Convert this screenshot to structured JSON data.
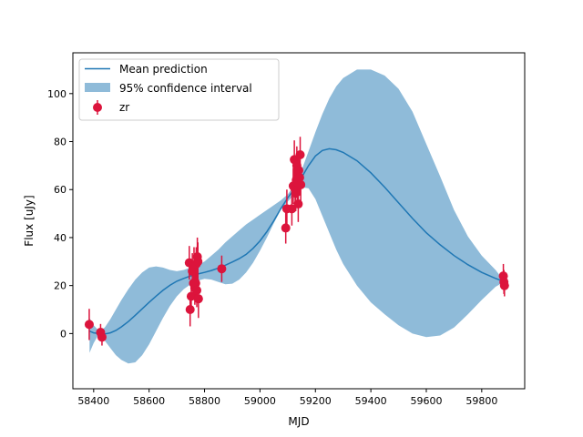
{
  "chart_data": {
    "type": "line",
    "title": "",
    "xlabel": "MJD",
    "ylabel": "Flux [uJy]",
    "xlim": [
      58325,
      59955
    ],
    "ylim": [
      -23,
      117
    ],
    "xticks": [
      58400,
      58600,
      58800,
      59000,
      59200,
      59400,
      59600,
      59800
    ],
    "yticks": [
      0,
      20,
      40,
      60,
      80,
      100
    ],
    "grid": false,
    "legend_position": "upper-left",
    "legend": {
      "mean_label": "Mean prediction",
      "band_label": "95% confidence interval",
      "points_label": "zr"
    },
    "colors": {
      "mean": "#1f77b4",
      "band": "#8fbbd9",
      "points": "#dc143c"
    },
    "mean": {
      "x": [
        58385,
        58400,
        58420,
        58440,
        58460,
        58480,
        58500,
        58525,
        58550,
        58575,
        58600,
        58625,
        58650,
        58675,
        58700,
        58725,
        58750,
        58775,
        58800,
        58825,
        58850,
        58875,
        58900,
        58925,
        58950,
        58975,
        59000,
        59025,
        59050,
        59075,
        59100,
        59125,
        59150,
        59175,
        59200,
        59225,
        59250,
        59275,
        59300,
        59350,
        59400,
        59450,
        59500,
        59550,
        59600,
        59650,
        59700,
        59750,
        59800,
        59850,
        59880
      ],
      "y": [
        1,
        0.3,
        0,
        -0.2,
        0.3,
        1.3,
        2.8,
        5,
        7.6,
        10.3,
        13,
        15.6,
        18,
        20.1,
        21.8,
        23,
        24,
        24.8,
        25.5,
        26.3,
        27.3,
        28.5,
        29.8,
        31.2,
        33,
        35.5,
        38.6,
        42.5,
        47,
        52,
        56.5,
        60.5,
        65,
        70,
        74,
        76.3,
        77,
        76.6,
        75.5,
        72,
        67,
        61,
        54.5,
        48,
        42,
        37,
        32.5,
        28.7,
        25.5,
        23,
        21.7
      ]
    },
    "band": {
      "x": [
        58385,
        58400,
        58420,
        58440,
        58460,
        58480,
        58500,
        58525,
        58550,
        58575,
        58600,
        58625,
        58650,
        58675,
        58700,
        58725,
        58750,
        58775,
        58800,
        58825,
        58850,
        58875,
        58900,
        58925,
        58950,
        58975,
        59000,
        59025,
        59050,
        59075,
        59100,
        59125,
        59150,
        59175,
        59200,
        59225,
        59250,
        59275,
        59300,
        59350,
        59400,
        59450,
        59500,
        59550,
        59600,
        59650,
        59700,
        59750,
        59800,
        59850,
        59880
      ],
      "lower": [
        -8,
        -4,
        0,
        -3,
        -6,
        -9,
        -11,
        -12.5,
        -12,
        -9,
        -4.5,
        1,
        6.5,
        11.5,
        15.5,
        18.5,
        20.5,
        22,
        22.8,
        22.5,
        21.5,
        20.5,
        20.8,
        22.5,
        25.5,
        29.5,
        34.5,
        40,
        46,
        51.5,
        55,
        58,
        61,
        60.5,
        56,
        49,
        42,
        35,
        29,
        20,
        13,
        8,
        3.5,
        0,
        -1.5,
        -0.8,
        2.5,
        8,
        14,
        19.5,
        21.5
      ],
      "upper": [
        6.5,
        3.5,
        1,
        2.5,
        6,
        10,
        14,
        18.5,
        22.5,
        25.5,
        27.5,
        28,
        27.5,
        26.5,
        26,
        26.5,
        27.5,
        28.5,
        30,
        32.5,
        35,
        38,
        40.5,
        43,
        45.5,
        47.5,
        49.5,
        51.5,
        53.5,
        55.5,
        58,
        62,
        68,
        76,
        84,
        91.5,
        98,
        103,
        106.5,
        110,
        110,
        107.5,
        102,
        92.5,
        79,
        65.5,
        51.5,
        40.5,
        32.5,
        26.5,
        22
      ]
    },
    "points": {
      "x": [
        58384,
        58425,
        58430,
        58745,
        58748,
        58752,
        58756,
        58760,
        58762,
        58765,
        58768,
        58770,
        58772,
        58774,
        58776,
        58778,
        58862,
        59093,
        59097,
        59115,
        59120,
        59124,
        59127,
        59129,
        59131,
        59133,
        59136,
        59138,
        59140,
        59143,
        59145,
        59147,
        59878,
        59880,
        59882
      ],
      "y": [
        3.8,
        0.5,
        -1.5,
        29.5,
        10,
        15.5,
        26,
        21,
        28,
        19,
        21,
        29,
        18,
        32,
        30,
        14.5,
        27,
        44,
        52,
        52,
        61.5,
        72.5,
        60,
        58.5,
        64,
        70,
        63,
        54,
        68,
        65,
        74.5,
        62,
        24,
        21.5,
        20
      ],
      "yerr": [
        6.5,
        3.5,
        3.5,
        7,
        7,
        6.5,
        7.5,
        7,
        8,
        7,
        8,
        7,
        7,
        8,
        8,
        8,
        5.5,
        6.5,
        8,
        7,
        7.5,
        8,
        7.5,
        7.5,
        7.5,
        8,
        7.5,
        7.5,
        8,
        7.5,
        7.5,
        7.5,
        5,
        5,
        4.5
      ]
    }
  }
}
